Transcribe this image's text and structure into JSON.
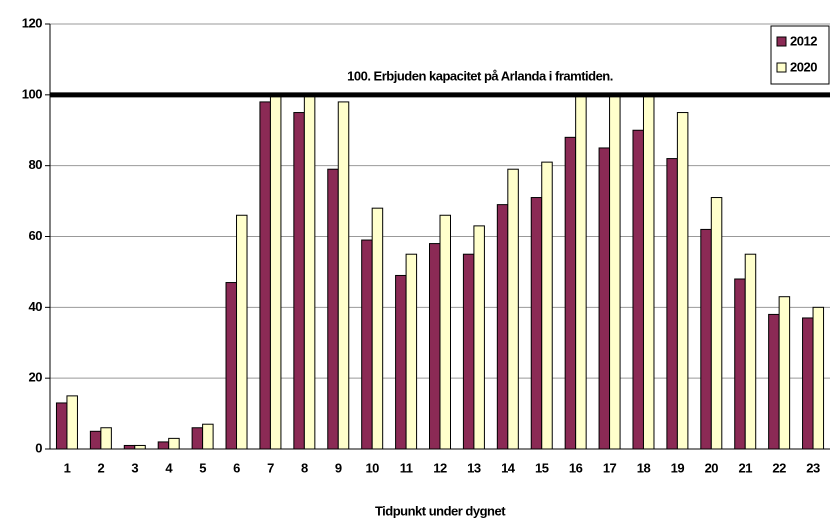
{
  "chart_data": {
    "type": "bar",
    "xlabel": "Tidpunkt under dygnet",
    "annotation": "100. Erbjuden kapacitet på Arlanda i framtiden.",
    "reference_line": 100,
    "categories": [
      1,
      2,
      3,
      4,
      5,
      6,
      7,
      8,
      9,
      10,
      11,
      12,
      13,
      14,
      15,
      16,
      17,
      18,
      19,
      20,
      21,
      22,
      23
    ],
    "series": [
      {
        "name": "2012",
        "color": "#8b2a55",
        "values": [
          13,
          5,
          1,
          2,
          6,
          47,
          98,
          95,
          79,
          59,
          49,
          58,
          55,
          69,
          71,
          88,
          85,
          90,
          82,
          62,
          48,
          38,
          37
        ]
      },
      {
        "name": "2020",
        "color": "#ffffcc",
        "values": [
          15,
          6,
          1,
          3,
          7,
          66,
          100,
          100,
          98,
          68,
          55,
          66,
          63,
          79,
          81,
          100,
          100,
          100,
          95,
          71,
          55,
          43,
          40
        ]
      }
    ],
    "ylim": [
      0,
      120
    ],
    "yticks": [
      0,
      20,
      40,
      60,
      80,
      100,
      120
    ],
    "grid": true,
    "legend": "top-right"
  }
}
